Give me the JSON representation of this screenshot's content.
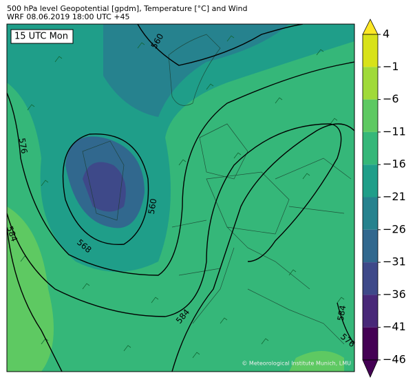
{
  "header": {
    "title": "500 hPa level Geopotential [gpdm], Temperature [°C] and Wind",
    "subtitle": "WRF 08.06.2019 18:00 UTC +45"
  },
  "map": {
    "time_label": "15 UTC Mon",
    "contour_labels": [
      "560",
      "576",
      "584",
      "568",
      "560",
      "584",
      "576",
      "584"
    ],
    "credit": "© Meteorological Institute Munich, LMU"
  },
  "colorbar": {
    "lim": [
      -46,
      4
    ],
    "ticks": [
      4,
      {
        "value": -1,
        "label": "−1"
      },
      {
        "value": -6,
        "label": "−6"
      },
      {
        "value": -11,
        "label": "−11"
      },
      {
        "value": -16,
        "label": "−16"
      },
      {
        "value": -21,
        "label": "−21"
      },
      {
        "value": -26,
        "label": "−26"
      },
      {
        "value": -31,
        "label": "−31"
      },
      {
        "value": -36,
        "label": "−36"
      },
      {
        "value": -41,
        "label": "−41"
      },
      {
        "value": -46,
        "label": "−46"
      }
    ],
    "colors": [
      "#fde725",
      "#d8e219",
      "#a0da39",
      "#5ec962",
      "#35b779",
      "#1f9e89",
      "#26828e",
      "#31688e",
      "#3e4989",
      "#482878",
      "#440154",
      "#440154"
    ]
  }
}
